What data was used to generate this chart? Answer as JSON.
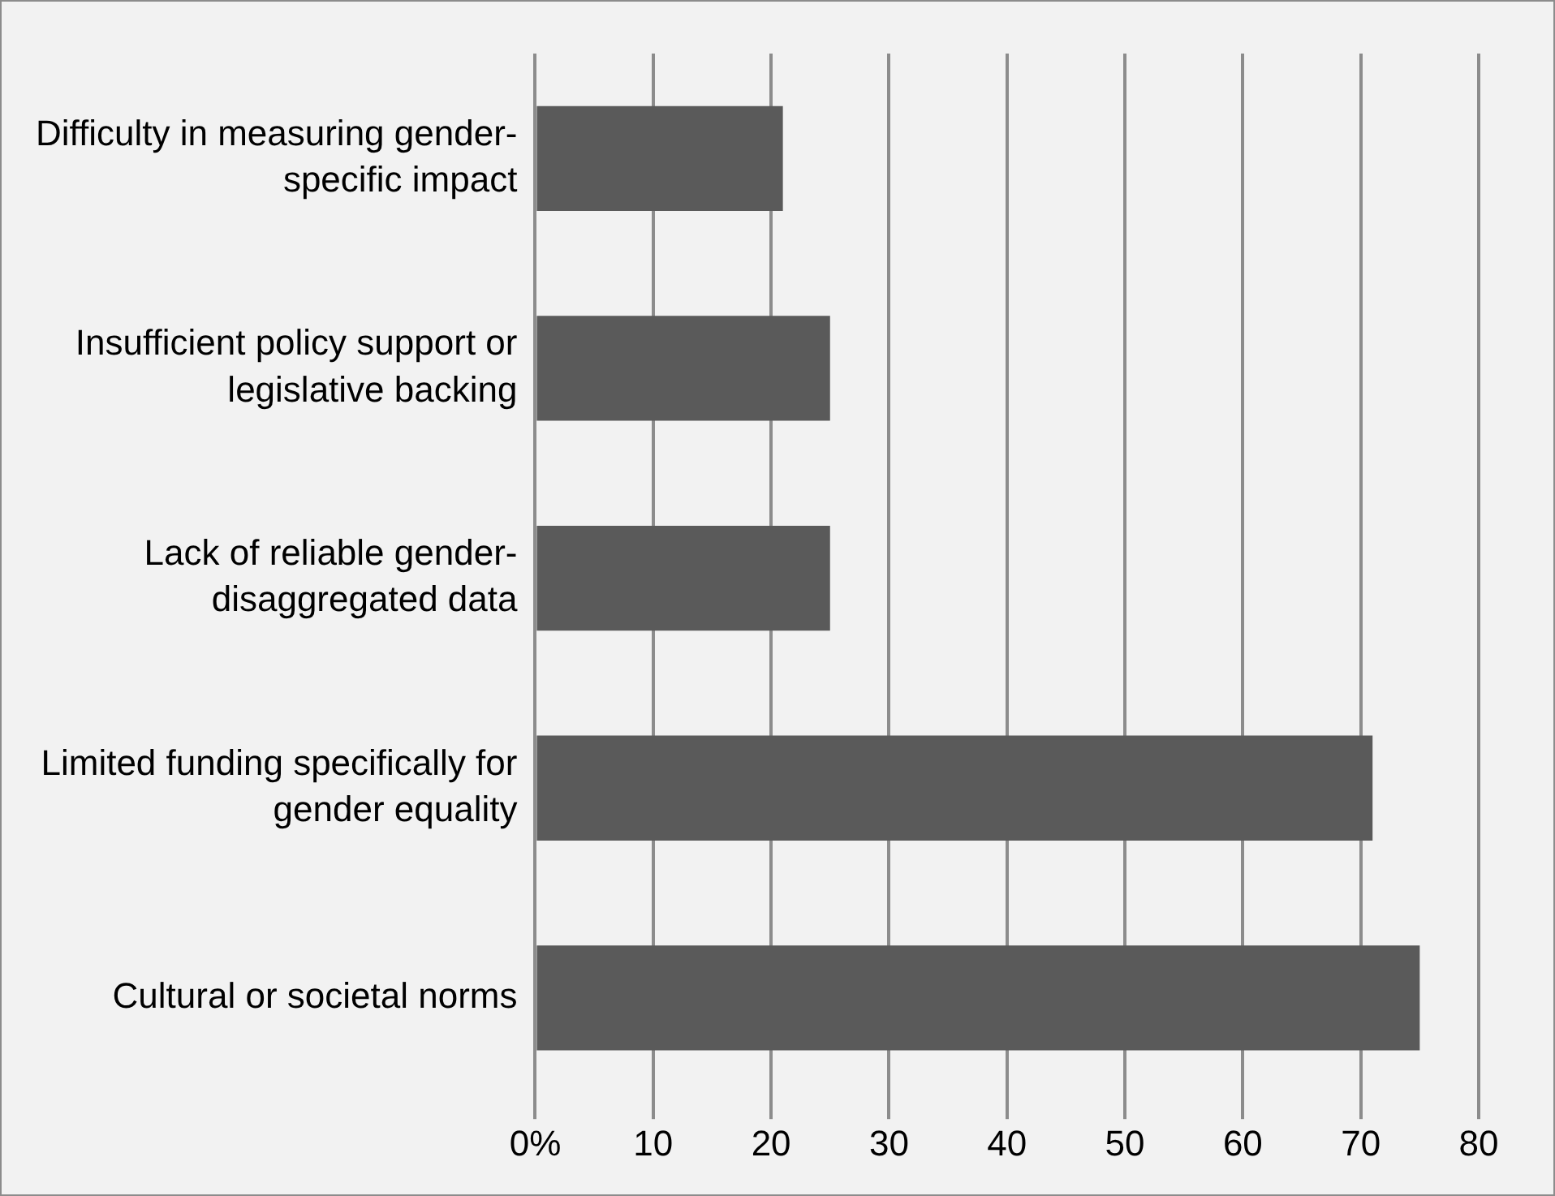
{
  "chart_data": {
    "type": "bar",
    "orientation": "horizontal",
    "categories": [
      "Difficulty in measuring gender-specific impact",
      "Insufficient policy support or legislative backing",
      "Lack of reliable gender-disaggregated data",
      "Limited funding specifically for gender equality",
      "Cultural or societal norms"
    ],
    "values": [
      21,
      25,
      25,
      71,
      75
    ],
    "color": "#5a5a5a",
    "xlim": [
      0,
      80
    ],
    "xticks": [
      {
        "value": 0,
        "label": "0%"
      },
      10,
      20,
      30,
      40,
      50,
      60,
      70,
      80
    ],
    "grid": "x"
  }
}
